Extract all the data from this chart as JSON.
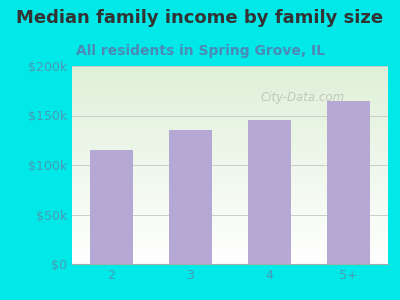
{
  "title": "Median family income by family size",
  "subtitle": "All residents in Spring Grove, IL",
  "categories": [
    "2",
    "3",
    "4",
    "5+"
  ],
  "values": [
    115000,
    135000,
    145000,
    165000
  ],
  "bar_color": "#b5a8d5",
  "title_color": "#333333",
  "subtitle_color": "#4a8ab5",
  "tick_label_color": "#4a9ab5",
  "background_color": "#00e8e8",
  "plot_bg_color_top": "#dff0d8",
  "plot_bg_color_bottom": "#ffffff",
  "ylim": [
    0,
    200000
  ],
  "yticks": [
    0,
    50000,
    100000,
    150000,
    200000
  ],
  "ytick_labels": [
    "$0",
    "$50k",
    "$100k",
    "$150k",
    "$200k"
  ],
  "title_fontsize": 13,
  "subtitle_fontsize": 10,
  "tick_fontsize": 9,
  "watermark": "City-Data.com"
}
